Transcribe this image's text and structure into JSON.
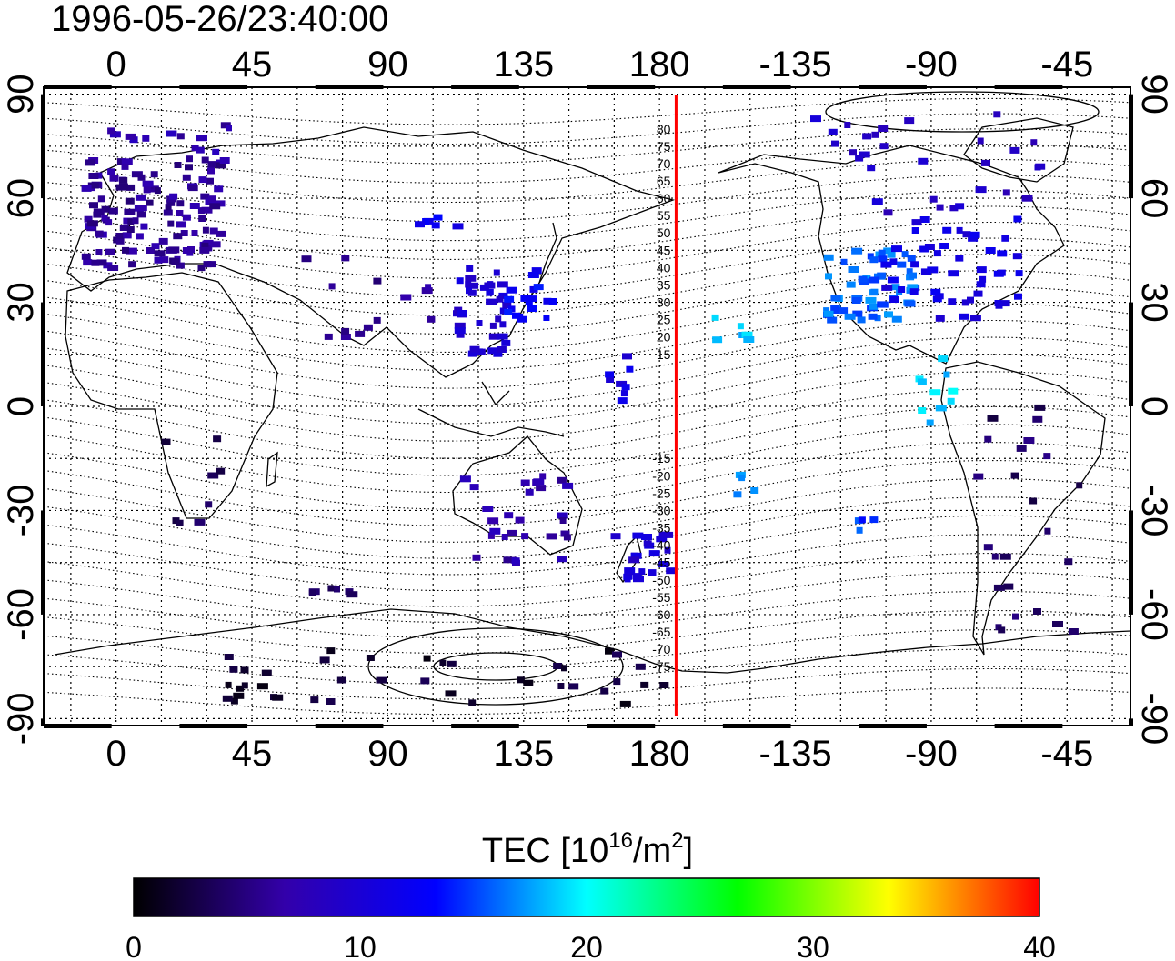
{
  "timestamp": "1996-05-26/23:40:00",
  "axes": {
    "lon_ticks": [
      "0",
      "45",
      "90",
      "135",
      "180",
      "-135",
      "-90",
      "-45"
    ],
    "lat_ticks": [
      "90",
      "60",
      "30",
      "0",
      "-30",
      "-60",
      "-90"
    ],
    "lon_values": [
      0,
      45,
      90,
      135,
      180,
      225,
      270,
      315
    ],
    "lat_values": [
      90,
      60,
      30,
      0,
      -30,
      -60,
      -90
    ],
    "lon_range": [
      -24,
      336
    ],
    "lat_range": [
      -92,
      92
    ]
  },
  "midnight_meridian_lon": 185.5,
  "contour_labels": [
    {
      "text": "80",
      "lat": 80
    },
    {
      "text": "75",
      "lat": 75
    },
    {
      "text": "70",
      "lat": 70
    },
    {
      "text": "65",
      "lat": 65
    },
    {
      "text": "60",
      "lat": 60
    },
    {
      "text": "55",
      "lat": 55
    },
    {
      "text": "50",
      "lat": 50
    },
    {
      "text": "45",
      "lat": 45
    },
    {
      "text": "40",
      "lat": 40
    },
    {
      "text": "35",
      "lat": 35
    },
    {
      "text": "30",
      "lat": 30
    },
    {
      "text": "25",
      "lat": 25
    },
    {
      "text": "20",
      "lat": 20
    },
    {
      "text": "15",
      "lat": 15
    },
    {
      "text": "-15",
      "lat": -15
    },
    {
      "text": "-20",
      "lat": -20
    },
    {
      "text": "-25",
      "lat": -25
    },
    {
      "text": "-30",
      "lat": -30
    },
    {
      "text": "-35",
      "lat": -35
    },
    {
      "text": "-40",
      "lat": -40
    },
    {
      "text": "-45",
      "lat": -45
    },
    {
      "text": "-50",
      "lat": -50
    },
    {
      "text": "-55",
      "lat": -55
    },
    {
      "text": "-60",
      "lat": -60
    },
    {
      "text": "-65",
      "lat": -65
    },
    {
      "text": "-70",
      "lat": -70
    },
    {
      "text": "-75",
      "lat": -75
    }
  ],
  "colorbar": {
    "title_prefix": "TEC  [10",
    "title_sup1": "16",
    "title_mid": "/m",
    "title_sup2": "2",
    "title_suffix": "]",
    "min": 0,
    "max": 40,
    "tick_labels": [
      "0",
      "10",
      "20",
      "30",
      "40"
    ],
    "stops": [
      "#000000",
      "#3300aa",
      "#0000ff",
      "#00ffff",
      "#00ff00",
      "#ffff00",
      "#ff0000"
    ]
  },
  "tec_clusters": [
    {
      "region": "europe",
      "lon": [
        -10,
        35
      ],
      "lat": [
        40,
        72
      ],
      "tec": 6,
      "n": 140
    },
    {
      "region": "scandinavia-north",
      "lon": [
        -5,
        40
      ],
      "lat": [
        70,
        82
      ],
      "tec": 7,
      "n": 14
    },
    {
      "region": "central-asia",
      "lon": [
        60,
        105
      ],
      "lat": [
        20,
        45
      ],
      "tec": 6,
      "n": 14
    },
    {
      "region": "east-asia",
      "lon": [
        110,
        130
      ],
      "lat": [
        15,
        40
      ],
      "tec": 10,
      "n": 40
    },
    {
      "region": "japan",
      "lon": [
        128,
        145
      ],
      "lat": [
        25,
        40
      ],
      "tec": 13,
      "n": 18
    },
    {
      "region": "siberia",
      "lon": [
        100,
        115
      ],
      "lat": [
        50,
        56
      ],
      "tec": 12,
      "n": 6
    },
    {
      "region": "pacific-central",
      "lon": [
        160,
        175
      ],
      "lat": [
        0,
        15
      ],
      "tec": 11,
      "n": 8
    },
    {
      "region": "australia",
      "lon": [
        115,
        150
      ],
      "lat": [
        -45,
        -20
      ],
      "tec": 7,
      "n": 30
    },
    {
      "region": "new-zealand",
      "lon": [
        165,
        185
      ],
      "lat": [
        -50,
        -35
      ],
      "tec": 10,
      "n": 24
    },
    {
      "region": "south-africa",
      "lon": [
        15,
        35
      ],
      "lat": [
        -35,
        -5
      ],
      "tec": 3,
      "n": 8
    },
    {
      "region": "southern-ocean",
      "lon": [
        60,
        80
      ],
      "lat": [
        -58,
        -52
      ],
      "tec": 4,
      "n": 6
    },
    {
      "region": "antarctica",
      "lon": [
        30,
        190
      ],
      "lat": [
        -86,
        -70
      ],
      "tec": 2,
      "n": 40
    },
    {
      "region": "hawaii",
      "lon": [
        195,
        210
      ],
      "lat": [
        18,
        28
      ],
      "tec": 19,
      "n": 6
    },
    {
      "region": "north-america-west",
      "lon": [
        235,
        265
      ],
      "lat": [
        25,
        45
      ],
      "tec": 16,
      "n": 60
    },
    {
      "region": "north-america-east",
      "lon": [
        255,
        300
      ],
      "lat": [
        25,
        55
      ],
      "tec": 11,
      "n": 50
    },
    {
      "region": "canada-north",
      "lon": [
        230,
        310
      ],
      "lat": [
        55,
        85
      ],
      "tec": 9,
      "n": 30
    },
    {
      "region": "central-america",
      "lon": [
        265,
        280
      ],
      "lat": [
        -5,
        15
      ],
      "tec": 19,
      "n": 10
    },
    {
      "region": "south-pacific",
      "lon": [
        205,
        215
      ],
      "lat": [
        -28,
        -18
      ],
      "tec": 17,
      "n": 4
    },
    {
      "region": "south-pacific-east",
      "lon": [
        245,
        252
      ],
      "lat": [
        -36,
        -32
      ],
      "tec": 15,
      "n": 4
    },
    {
      "region": "south-america",
      "lon": [
        285,
        320
      ],
      "lat": [
        -70,
        0
      ],
      "tec": 4,
      "n": 24
    }
  ]
}
